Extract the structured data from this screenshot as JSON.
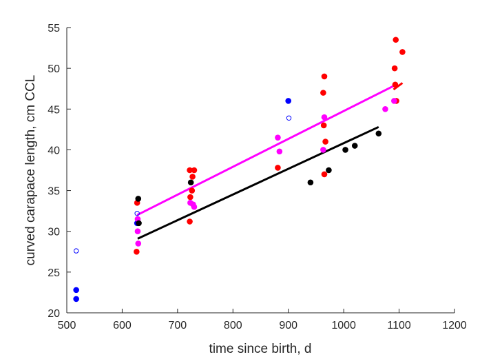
{
  "chart_data": {
    "type": "scatter",
    "title": "",
    "xlabel": "time since birth, d",
    "ylabel": "curved carapace length, cm CCL",
    "xlim": [
      500,
      1200
    ],
    "ylim": [
      20,
      55
    ],
    "xticks": [
      500,
      600,
      700,
      800,
      900,
      1000,
      1100,
      1200
    ],
    "yticks": [
      20,
      25,
      30,
      35,
      40,
      45,
      50,
      55
    ],
    "grid": false,
    "legend": "none",
    "series": [
      {
        "kind": "points",
        "marker": "filled-circle",
        "color": "#0000ff",
        "points": [
          [
            517,
            22.8
          ],
          [
            517,
            21.7
          ],
          [
            627,
            31.0
          ],
          [
            900,
            46.0
          ]
        ]
      },
      {
        "kind": "points",
        "marker": "open-circle",
        "color": "#0000ff",
        "points": [
          [
            517,
            27.6
          ],
          [
            627,
            32.2
          ],
          [
            901,
            43.9
          ]
        ]
      },
      {
        "kind": "points",
        "marker": "filled-circle",
        "color": "#ff0000",
        "points": [
          [
            626,
            27.5
          ],
          [
            627,
            33.5
          ],
          [
            722,
            37.5
          ],
          [
            730,
            37.5
          ],
          [
            727,
            36.7
          ],
          [
            726,
            35.0
          ],
          [
            723,
            34.2
          ],
          [
            722,
            31.2
          ],
          [
            881,
            37.8
          ],
          [
            965,
            49.0
          ],
          [
            963,
            47.0
          ],
          [
            964,
            43.0
          ],
          [
            967,
            41.0
          ],
          [
            965,
            37.0
          ],
          [
            1094,
            53.5
          ],
          [
            1092,
            50.0
          ],
          [
            1093,
            48.0
          ],
          [
            1095,
            46.0
          ],
          [
            1106,
            52.0
          ]
        ]
      },
      {
        "kind": "points",
        "marker": "filled-circle",
        "color": "#ff00ff",
        "points": [
          [
            628,
            31.5
          ],
          [
            628,
            30.0
          ],
          [
            629,
            28.5
          ],
          [
            723,
            33.5
          ],
          [
            728,
            33.3
          ],
          [
            730,
            33.0
          ],
          [
            881,
            41.5
          ],
          [
            884,
            39.8
          ],
          [
            965,
            44.0
          ],
          [
            963,
            40.0
          ],
          [
            1075,
            45.0
          ],
          [
            1091,
            46.0
          ]
        ]
      },
      {
        "kind": "points",
        "marker": "filled-circle",
        "color": "#000000",
        "points": [
          [
            629,
            34.0
          ],
          [
            630,
            31.0
          ],
          [
            724,
            36.0
          ],
          [
            940,
            36.0
          ],
          [
            973,
            37.5
          ],
          [
            1003,
            40.0
          ],
          [
            1020,
            40.5
          ],
          [
            1063,
            42.0
          ]
        ]
      },
      {
        "kind": "line",
        "color": "#ff00ff",
        "width": 3,
        "points": [
          [
            627,
            32.0
          ],
          [
            1092,
            47.9
          ]
        ]
      },
      {
        "kind": "line",
        "color": "#000000",
        "width": 3,
        "points": [
          [
            628,
            29.1
          ],
          [
            1063,
            42.8
          ]
        ]
      },
      {
        "kind": "line",
        "color": "#ff0000",
        "width": 3,
        "points": [
          [
            1090,
            47.4
          ],
          [
            1106,
            48.2
          ]
        ]
      }
    ]
  }
}
